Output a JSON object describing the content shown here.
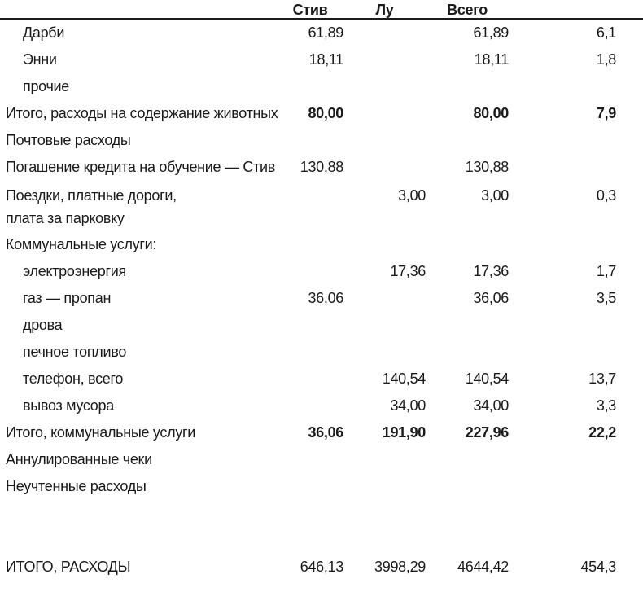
{
  "colors": {
    "background": "#ffffff",
    "text": "#1a1a1a",
    "rule": "#1a1a1a"
  },
  "table": {
    "header": {
      "col1": "Стив",
      "col2": "Лу",
      "col3": "Всего",
      "col4": ""
    },
    "rows": [
      {
        "label": "Дарби",
        "indent": 1,
        "bold_values": false,
        "values": [
          "61,89",
          "",
          "61,89",
          "6,1"
        ]
      },
      {
        "label": "Энни",
        "indent": 1,
        "bold_values": false,
        "values": [
          "18,11",
          "",
          "18,11",
          "1,8"
        ]
      },
      {
        "label": "прочие",
        "indent": 1,
        "bold_values": false,
        "values": [
          "",
          "",
          "",
          ""
        ]
      },
      {
        "label": "Итого, расходы на содержание животных",
        "indent": 0,
        "bold_values": true,
        "values": [
          "80,00",
          "",
          "80,00",
          "7,9"
        ]
      },
      {
        "label": "Почтовые расходы",
        "indent": 0,
        "bold_values": false,
        "values": [
          "",
          "",
          "",
          ""
        ]
      },
      {
        "label": "Погашение кредита на обучение — Стив",
        "indent": 0,
        "bold_values": false,
        "values": [
          "130,88",
          "",
          "130,88",
          ""
        ]
      },
      {
        "label": "Поездки, платные дороги,",
        "label_line2": "плата за парковку",
        "indent": 0,
        "bold_values": false,
        "values": [
          "",
          "3,00",
          "3,00",
          "0,3"
        ]
      },
      {
        "label": "Коммунальные услуги:",
        "indent": 0,
        "bold_values": false,
        "values": [
          "",
          "",
          "",
          ""
        ]
      },
      {
        "label": "электроэнергия",
        "indent": 1,
        "bold_values": false,
        "values": [
          "",
          "17,36",
          "17,36",
          "1,7"
        ]
      },
      {
        "label": "газ — пропан",
        "indent": 1,
        "bold_values": false,
        "values": [
          "36,06",
          "",
          "36,06",
          "3,5"
        ]
      },
      {
        "label": "дрова",
        "indent": 1,
        "bold_values": false,
        "values": [
          "",
          "",
          "",
          ""
        ]
      },
      {
        "label": "печное топливо",
        "indent": 1,
        "bold_values": false,
        "values": [
          "",
          "",
          "",
          ""
        ]
      },
      {
        "label": "телефон, всего",
        "indent": 1,
        "bold_values": false,
        "values": [
          "",
          "140,54",
          "140,54",
          "13,7"
        ]
      },
      {
        "label": "вывоз мусора",
        "indent": 1,
        "bold_values": false,
        "values": [
          "",
          "34,00",
          "34,00",
          "3,3"
        ]
      },
      {
        "label": "Итого, коммунальные услуги",
        "indent": 0,
        "bold_values": true,
        "values": [
          "36,06",
          "191,90",
          "227,96",
          "22,2"
        ]
      },
      {
        "label": "Аннулированные чеки",
        "indent": 0,
        "bold_values": false,
        "values": [
          "",
          "",
          "",
          ""
        ]
      },
      {
        "label": "Неучтенные расходы",
        "indent": 0,
        "bold_values": false,
        "values": [
          "",
          "",
          "",
          ""
        ]
      },
      {
        "spacer": true
      },
      {
        "label": "ИТОГО, РАСХОДЫ",
        "indent": 0,
        "bold_values": false,
        "values": [
          "646,13",
          "3998,29",
          "4644,42",
          "454,3"
        ]
      }
    ]
  }
}
